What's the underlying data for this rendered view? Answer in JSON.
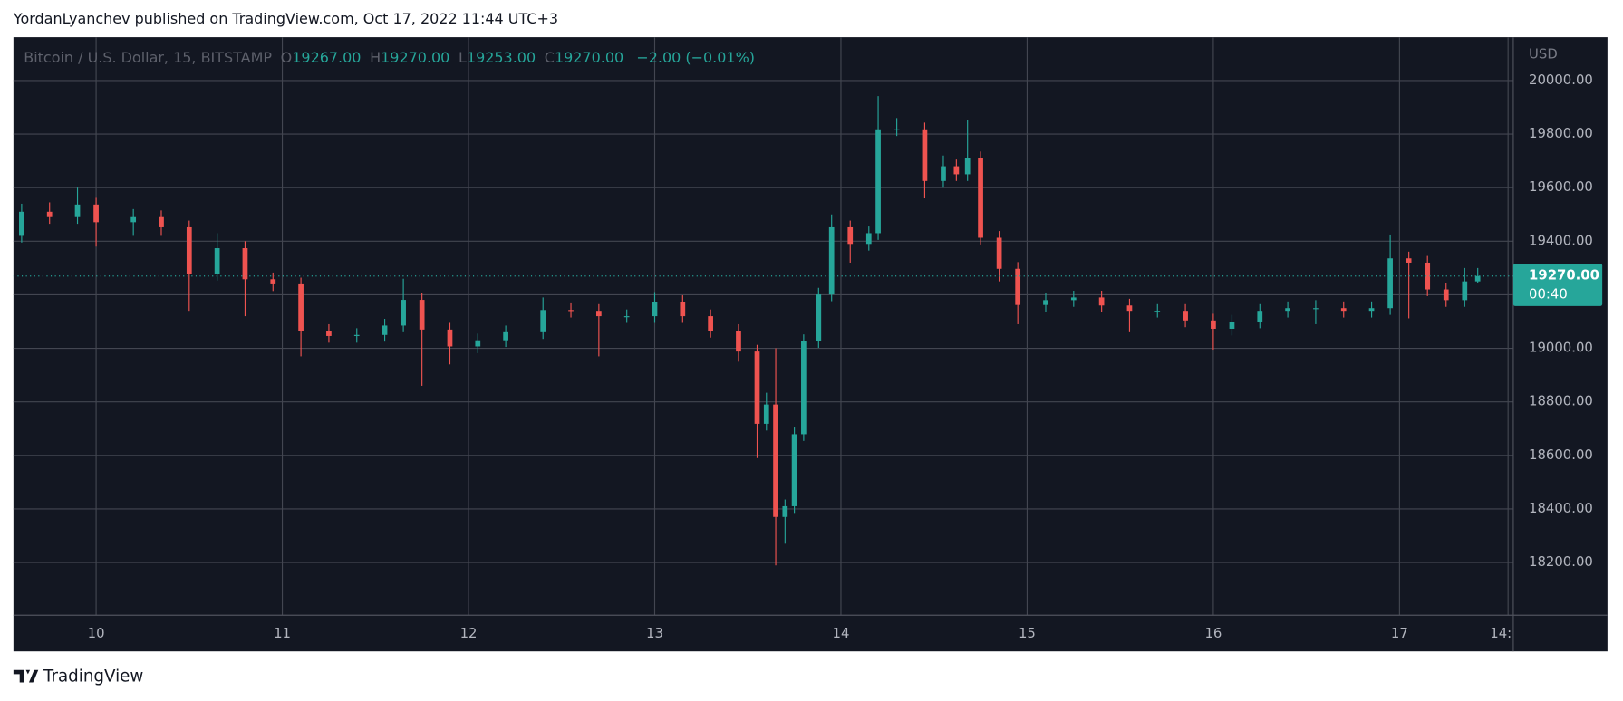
{
  "header": {
    "text": "YordanLyanchev published on TradingView.com, Oct 17, 2022 11:44 UTC+3"
  },
  "chart_data": {
    "type": "candlestick",
    "legend": {
      "symbol": "Bitcoin / U.S. Dollar, 15, BITSTAMP",
      "open_key": "O",
      "open": "19267.00",
      "high_key": "H",
      "high": "19270.00",
      "low_key": "L",
      "low": "19253.00",
      "close_key": "C",
      "close": "19270.00",
      "change": "−2.00 (−0.01%)"
    },
    "currency": "USD",
    "last_price": {
      "value": 19270,
      "label": "19270.00"
    },
    "countdown": "00:40",
    "up_color": "#26a69a",
    "down_color": "#ef5350",
    "grid": true,
    "x": [
      9.6,
      9.75,
      9.9,
      10.0,
      10.2,
      10.35,
      10.5,
      10.65,
      10.8,
      10.95,
      11.1,
      11.25,
      11.4,
      11.55,
      11.65,
      11.75,
      11.9,
      12.05,
      12.2,
      12.4,
      12.55,
      12.7,
      12.85,
      13.0,
      13.15,
      13.3,
      13.45,
      13.55,
      13.6,
      13.65,
      13.7,
      13.75,
      13.8,
      13.88,
      13.95,
      14.05,
      14.15,
      14.2,
      14.3,
      14.45,
      14.55,
      14.62,
      14.68,
      14.75,
      14.85,
      14.95,
      15.1,
      15.25,
      15.4,
      15.55,
      15.7,
      15.85,
      16.0,
      16.1,
      16.25,
      16.4,
      16.55,
      16.7,
      16.85,
      16.95,
      17.05,
      17.15,
      17.25,
      17.35,
      17.42
    ],
    "open": [
      19420,
      19510,
      19490,
      19537,
      19471,
      19490,
      19452,
      19278,
      19374,
      19258,
      19239,
      19065,
      19046,
      19050,
      19085,
      19181,
      19070,
      19007,
      19030,
      19060,
      19143,
      19140,
      19120,
      19120,
      19173,
      19120,
      19065,
      18988,
      18718,
      18790,
      18370,
      18410,
      18679,
      19027,
      19201,
      19452,
      19390,
      19430,
      19818,
      19818,
      19625,
      19680,
      19650,
      19710,
      19413,
      19297,
      19162,
      19180,
      19190,
      19160,
      19140,
      19140,
      19104,
      19073,
      19100,
      19140,
      19150,
      19150,
      19140,
      19150,
      19336,
      19320,
      19220,
      19180,
      19250
    ],
    "high": [
      19540,
      19545,
      19600,
      19562,
      19520,
      19515,
      19477,
      19430,
      19400,
      19283,
      19264,
      19090,
      19075,
      19110,
      19260,
      19206,
      19095,
      19055,
      19085,
      19190,
      19168,
      19165,
      19145,
      19210,
      19198,
      19145,
      19090,
      19013,
      18834,
      19000,
      18435,
      18704,
      19052,
      19226,
      19500,
      19477,
      19455,
      19942,
      19860,
      19843,
      19720,
      19705,
      19853,
      19735,
      19438,
      19322,
      19205,
      19215,
      19215,
      19185,
      19165,
      19165,
      19129,
      19125,
      19165,
      19175,
      19180,
      19175,
      19175,
      19425,
      19361,
      19345,
      19245,
      19300,
      19300
    ],
    "low": [
      19395,
      19465,
      19465,
      19380,
      19420,
      19420,
      19140,
      19253,
      19120,
      19214,
      18970,
      19021,
      19021,
      19025,
      19060,
      18860,
      18940,
      18982,
      19005,
      19035,
      19115,
      18970,
      19095,
      19095,
      19095,
      19040,
      18950,
      18590,
      18693,
      18189,
      18270,
      18385,
      18654,
      19002,
      19176,
      19320,
      19365,
      19405,
      19793,
      19560,
      19600,
      19625,
      19625,
      19388,
      19250,
      19090,
      19137,
      19155,
      19135,
      19060,
      19115,
      19079,
      18995,
      19048,
      19075,
      19115,
      19090,
      19115,
      19115,
      19125,
      19112,
      19195,
      19155,
      19155,
      19245
    ],
    "close": [
      19510,
      19490,
      19537,
      19471,
      19490,
      19452,
      19278,
      19374,
      19258,
      19239,
      19065,
      19046,
      19050,
      19085,
      19181,
      19070,
      19007,
      19030,
      19060,
      19143,
      19140,
      19120,
      19120,
      19173,
      19120,
      19065,
      18988,
      18718,
      18790,
      18370,
      18410,
      18679,
      19027,
      19201,
      19452,
      19390,
      19430,
      19818,
      19818,
      19625,
      19680,
      19650,
      19710,
      19413,
      19297,
      19162,
      19180,
      19190,
      19160,
      19140,
      19140,
      19104,
      19073,
      19100,
      19140,
      19150,
      19150,
      19140,
      19150,
      19336,
      19320,
      19220,
      19180,
      19250,
      19270
    ],
    "xlim": [
      9.556,
      17.611
    ],
    "xticks": [
      {
        "value": 10,
        "label": "10"
      },
      {
        "value": 11,
        "label": "11"
      },
      {
        "value": 12,
        "label": "12"
      },
      {
        "value": 13,
        "label": "13"
      },
      {
        "value": 14,
        "label": "14"
      },
      {
        "value": 15,
        "label": "15"
      },
      {
        "value": 16,
        "label": "16"
      },
      {
        "value": 17,
        "label": "17"
      },
      {
        "value": 17.583,
        "label": "14:"
      }
    ],
    "ylim": [
      18003,
      20162
    ],
    "yticks": [
      {
        "value": 18200,
        "label": "18200.00"
      },
      {
        "value": 18400,
        "label": "18400.00"
      },
      {
        "value": 18600,
        "label": "18600.00"
      },
      {
        "value": 18800,
        "label": "18800.00"
      },
      {
        "value": 19000,
        "label": "19000.00"
      },
      {
        "value": 19200,
        "label": "19200.00"
      },
      {
        "value": 19400,
        "label": "19400.00"
      },
      {
        "value": 19600,
        "label": "19600.00"
      },
      {
        "value": 19800,
        "label": "19800.00"
      },
      {
        "value": 20000,
        "label": "20000.00"
      }
    ]
  },
  "footer": {
    "brand": "TradingView"
  }
}
